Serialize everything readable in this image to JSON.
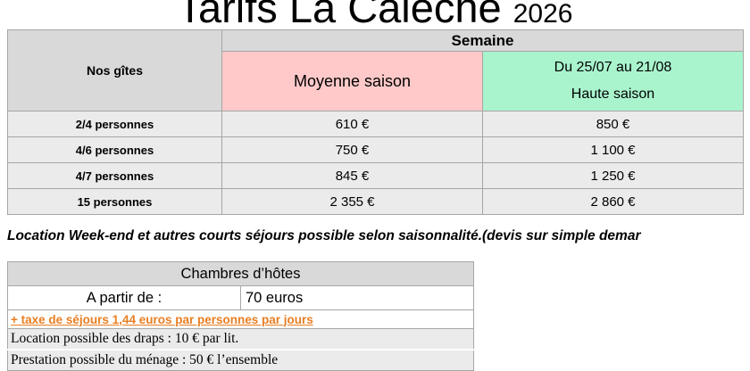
{
  "title": {
    "main": "Tarifs La Calèche",
    "year": "2026"
  },
  "rates_table": {
    "group_header": "Semaine",
    "corner_header": "Nos gîtes",
    "col_moyenne": "Moyenne saison",
    "col_haute_dates": "Du 25/07 au 21/08",
    "col_haute_label": "Haute saison",
    "rows": [
      {
        "gite": "2/4 personnes",
        "moyenne_saison": "610 €",
        "haute_saison": "850 €"
      },
      {
        "gite": "4/6 personnes",
        "moyenne_saison": "750 €",
        "haute_saison": "1 100 €"
      },
      {
        "gite": "4/7 personnes",
        "moyenne_saison": "845 €",
        "haute_saison": "1 250 €"
      },
      {
        "gite": "15 personnes",
        "moyenne_saison": "2 355 €",
        "haute_saison": "2 860 €"
      }
    ]
  },
  "weekend_note": "Location Week-end et autres courts séjours possible selon saisonnalité.(devis sur simple demar",
  "rooms_table": {
    "header": "Chambres d’hôtes",
    "from_label": "A partir de :",
    "from_value": "70 euros",
    "tax_note": "+ taxe de séjours 1,44 euros par personnes par jours",
    "linen_note": "Location possible des draps : 10 € par lit.",
    "cleaning_note": "Prestation possible du ménage : 50 € l’ensemble"
  },
  "colors": {
    "header-gray": "#d9d9d9",
    "row-gray": "#ebebeb",
    "moyenne-pink": "#ffc9c9",
    "haute-green": "#a9f4cd",
    "tax-orange": "#e87e22",
    "grid-line": "#a6a6a6"
  }
}
